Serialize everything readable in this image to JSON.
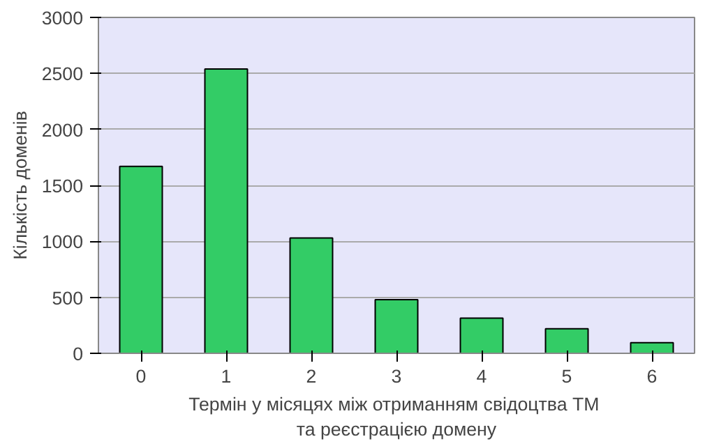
{
  "chart_data": {
    "type": "bar",
    "categories": [
      "0",
      "1",
      "2",
      "3",
      "4",
      "5",
      "6"
    ],
    "values": [
      1670,
      2540,
      1030,
      480,
      315,
      220,
      95
    ],
    "color": "#33cc66",
    "xlabel": "Термін у  місяцях між отриманням свідоцтва ТМ\nта реєстрацією домену",
    "ylabel": "Кількість доменів",
    "ylim": [
      0,
      3000
    ],
    "yticks": [
      0,
      500,
      1000,
      1500,
      2000,
      2500,
      3000
    ],
    "grid": "y"
  }
}
